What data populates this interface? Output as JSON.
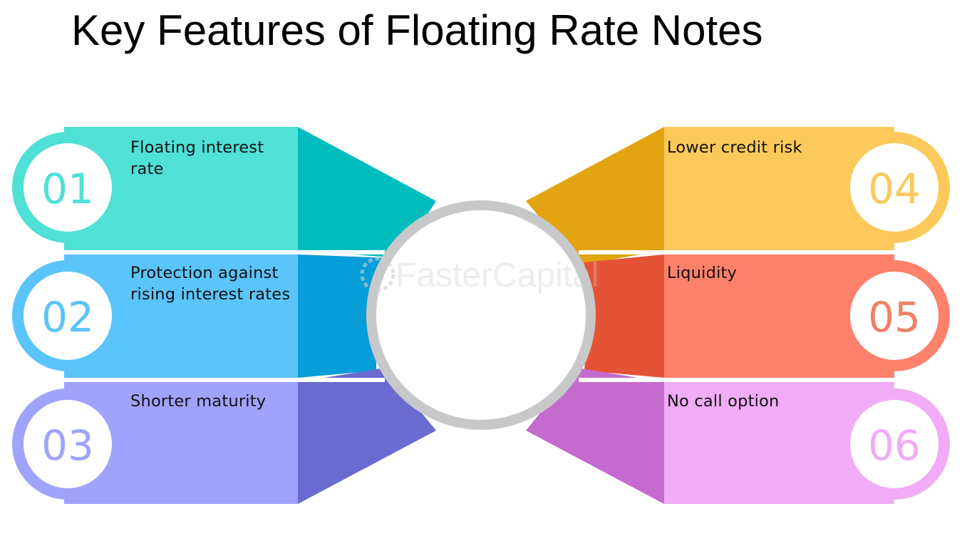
{
  "title": "Key Features of Floating Rate Notes",
  "watermark": "FasterCapital",
  "items": [
    {
      "number": "01",
      "label": "Floating interest rate",
      "lines": [
        "Floating interest",
        "rate"
      ],
      "colors": {
        "ring": "#4fe0d6",
        "bar": "#4fe0d6",
        "wedge": "#00bdbd",
        "text": "#4fe0d6"
      }
    },
    {
      "number": "02",
      "label": "Protection against rising interest rates",
      "lines": [
        "Protection against",
        "rising interest rates"
      ],
      "colors": {
        "ring": "#5bc4fa",
        "bar": "#5bc4fa",
        "wedge": "#069dd9",
        "text": "#5bc4fa"
      }
    },
    {
      "number": "03",
      "label": "Shorter maturity",
      "lines": [
        "Shorter maturity"
      ],
      "colors": {
        "ring": "#9fa3fc",
        "bar": "#9fa3fc",
        "wedge": "#6a6bd0",
        "text": "#9fa3fc"
      }
    },
    {
      "number": "04",
      "label": "Lower credit risk",
      "lines": [
        "Lower credit risk"
      ],
      "colors": {
        "ring": "#fcc95a",
        "bar": "#fcc95a",
        "wedge": "#e2a411",
        "text": "#fcc95a"
      }
    },
    {
      "number": "05",
      "label": "Liquidity",
      "lines": [
        "Liquidity"
      ],
      "colors": {
        "ring": "#fe816b",
        "bar": "#fe816b",
        "wedge": "#e55336",
        "text": "#f08164"
      }
    },
    {
      "number": "06",
      "label": "No call option",
      "lines": [
        "No call option"
      ],
      "colors": {
        "ring": "#f0acf6",
        "bar": "#f0acf6",
        "wedge": "#c56ace",
        "text": "#f0acf6"
      }
    }
  ],
  "center_ring_color": "#c7c8ca"
}
